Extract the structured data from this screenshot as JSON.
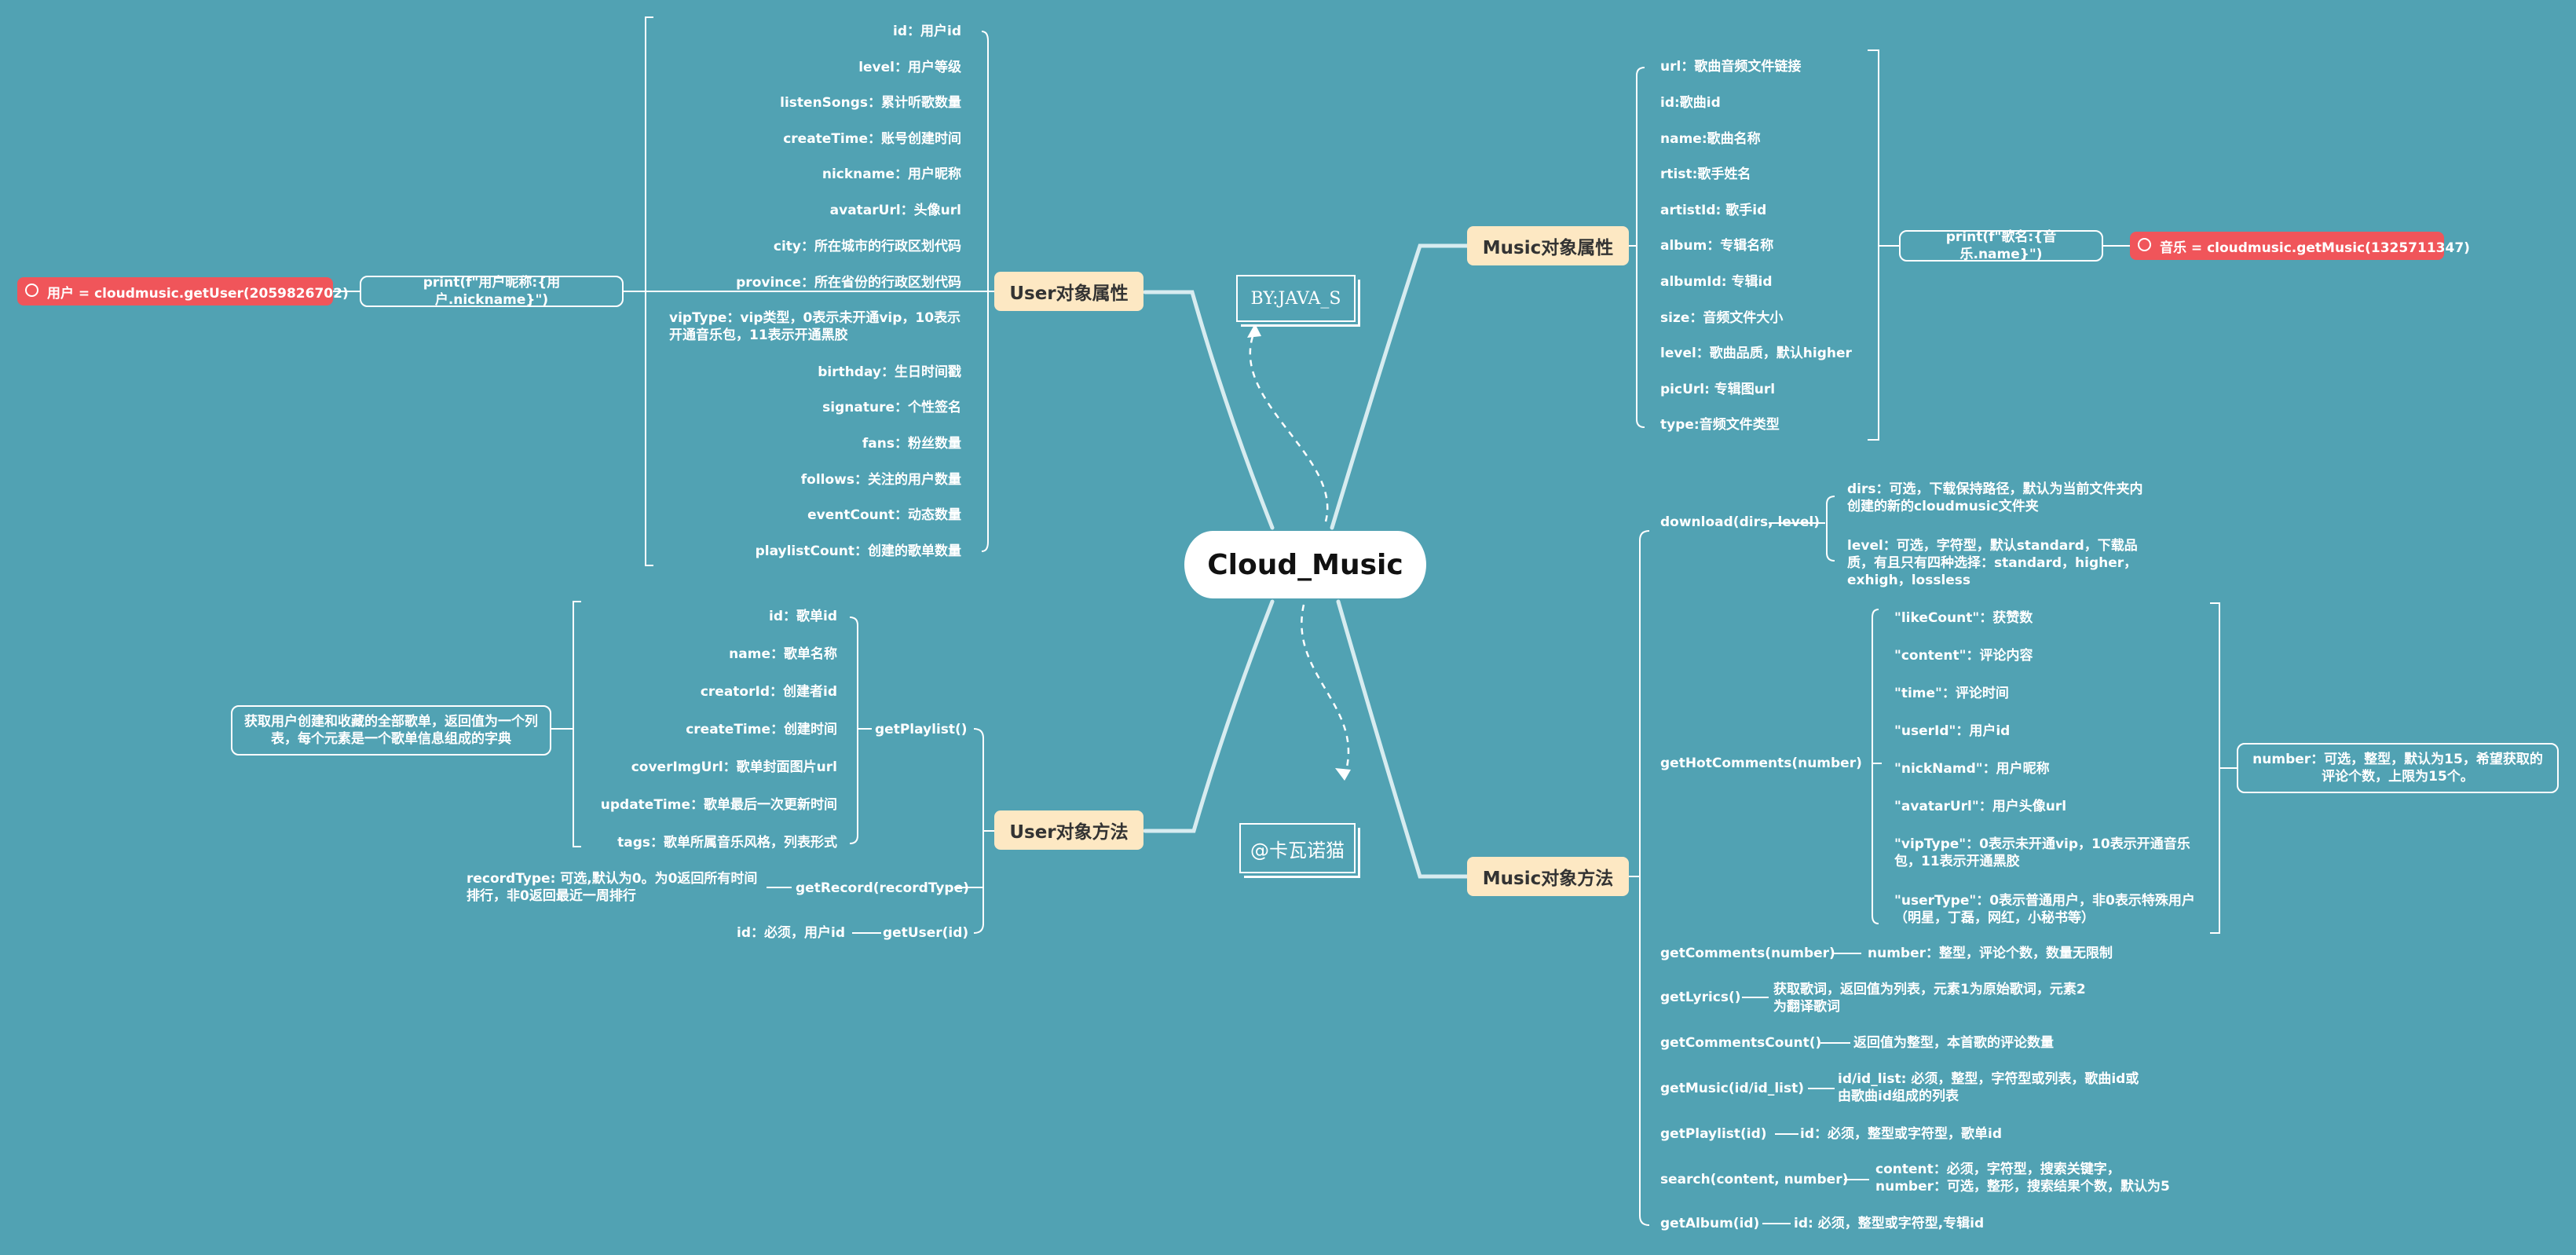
{
  "root": "Cloud_Music",
  "branches": {
    "user_attr": "User对象属性",
    "user_method": "User对象方法",
    "music_attr": "Music对象属性",
    "music_method": "Music对象方法"
  },
  "stamps": {
    "by": "BY:JAVA_S",
    "author": "@卡瓦诺猫"
  },
  "user_get": "用户 = cloudmusic.getUser(2059826702)",
  "user_print": "print(f\"用户昵称:{用户.nickname}\")",
  "music_get": "音乐 = cloudmusic.getMusic(1325711347)",
  "music_print": "print(f\"歌名:{音乐.name}\")",
  "user_attrs": [
    "id：用户id",
    "level：用户等级",
    "listenSongs：累计听歌数量",
    "createTime：账号创建时间",
    "nickname：用户昵称",
    "avatarUrl：头像url",
    "city：所在城市的行政区划代码",
    "province：所在省份的行政区划代码",
    "vipType：vip类型，0表示未开通vip，10表示开通音乐包，11表示开通黑胶",
    "birthday：生日时间戳",
    "signature：个性签名",
    "fans：粉丝数量",
    "follows：关注的用户数量",
    "eventCount：动态数量",
    "playlistCount：创建的歌单数量"
  ],
  "playlist_fields": [
    "id：歌单id",
    "name：歌单名称",
    "creatorId：创建者id",
    "createTime：创建时间",
    "coverImgUrl：歌单封面图片url",
    "updateTime：歌单最后一次更新时间",
    "tags：歌单所属音乐风格，列表形式"
  ],
  "user_methods": {
    "getPlaylist": "getPlaylist()",
    "getRecord": "getRecord(recordType)",
    "getUser": "getUser(id)"
  },
  "playlist_desc": "获取用户创建和收藏的全部歌单，返回值为一个列表，每个元素是一个歌单信息组成的字典",
  "record_desc": "recordType: 可选,默认为0。为0返回所有时间排行，非0返回最近一周排行",
  "getuser_desc": "id：必须，用户id",
  "music_attrs": [
    "url：歌曲音频文件链接",
    "id:歌曲id",
    "name:歌曲名称",
    "rtist:歌手姓名",
    "artistId: 歌手id",
    "album：专辑名称",
    "albumId: 专辑id",
    "size：音频文件大小",
    "level：歌曲品质，默认higher",
    "picUrl: 专辑图url",
    "type:音频文件类型"
  ],
  "download": {
    "name": "download(dirs, level)",
    "dirs": "dirs：可选，下载保持路径，默认为当前文件夹内创建的新的cloudmusic文件夹",
    "level": "level：可选，字符型，默认standard，下载品质，有且只有四种选择：standard，higher，exhigh，lossless"
  },
  "hot_comments": {
    "name": "getHotComments(number)",
    "fields": [
      "\"likeCount\"：获赞数",
      "\"content\"：评论内容",
      "\"time\"：评论时间",
      "\"userId\"：用户id",
      "\"nickNamd\"：用户昵称",
      "\"avatarUrl\"：用户头像url",
      "\"vipType\"：0表示未开通vip，10表示开通音乐包，11表示开通黑胶",
      "\"userType\"：0表示普通用户，非0表示特殊用户（明星，丁磊，网红，小秘书等）"
    ],
    "number": "number：可选，整型，默认为15，希望获取的评论个数，上限为15个。"
  },
  "music_methods": [
    {
      "name": "getComments(number)",
      "desc": "number：整型，评论个数，数量无限制"
    },
    {
      "name": "getLyrics()",
      "desc": "获取歌词，返回值为列表，元素1为原始歌词，元素2为翻译歌词"
    },
    {
      "name": "getCommentsCount()",
      "desc": "返回值为整型，本首歌的评论数量"
    },
    {
      "name": "getMusic(id/id_list)",
      "desc": "id/id_list: 必须，整型，字符型或列表，歌曲id或由歌曲id组成的列表"
    },
    {
      "name": "getPlaylist(id)",
      "desc": "id：必须，整型或字符型，歌单id"
    },
    {
      "name": "search(content, number)",
      "desc": "content：必须，字符型，搜索关键字，number：可选，整形，搜索结果个数，默认为5"
    },
    {
      "name": "getAlbum(id)",
      "desc": "id: 必须，整型或字符型,专辑id"
    }
  ]
}
